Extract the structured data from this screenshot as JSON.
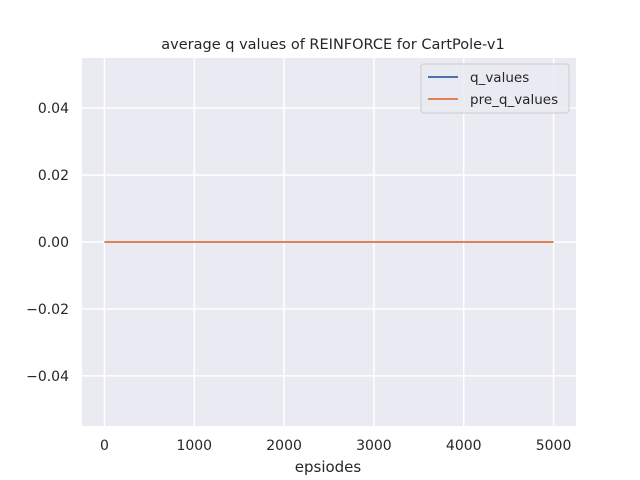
{
  "chart_data": {
    "type": "line",
    "title": "average q values of REINFORCE for CartPole-v1",
    "xlabel": "epsiodes",
    "ylabel": "",
    "xlim": [
      -250,
      5250
    ],
    "ylim": [
      -0.055,
      0.055
    ],
    "xticks": [
      0,
      1000,
      2000,
      3000,
      4000,
      5000
    ],
    "xtick_labels": [
      "0",
      "1000",
      "2000",
      "3000",
      "4000",
      "5000"
    ],
    "yticks": [
      -0.04,
      -0.02,
      0.0,
      0.02,
      0.04
    ],
    "ytick_labels": [
      "−0.04",
      "−0.02",
      "0.00",
      "0.02",
      "0.04"
    ],
    "grid": true,
    "legend_position": "top-right",
    "series": [
      {
        "name": "q_values",
        "color": "#4c72b0",
        "x": [
          0,
          5000
        ],
        "y": [
          0.0,
          0.0
        ]
      },
      {
        "name": "pre_q_values",
        "color": "#dd8452",
        "x": [
          0,
          5000
        ],
        "y": [
          0.0,
          0.0
        ]
      }
    ],
    "colors": {
      "plot_background": "#eaeaf2",
      "grid": "#ffffff",
      "text": "#262626"
    }
  }
}
